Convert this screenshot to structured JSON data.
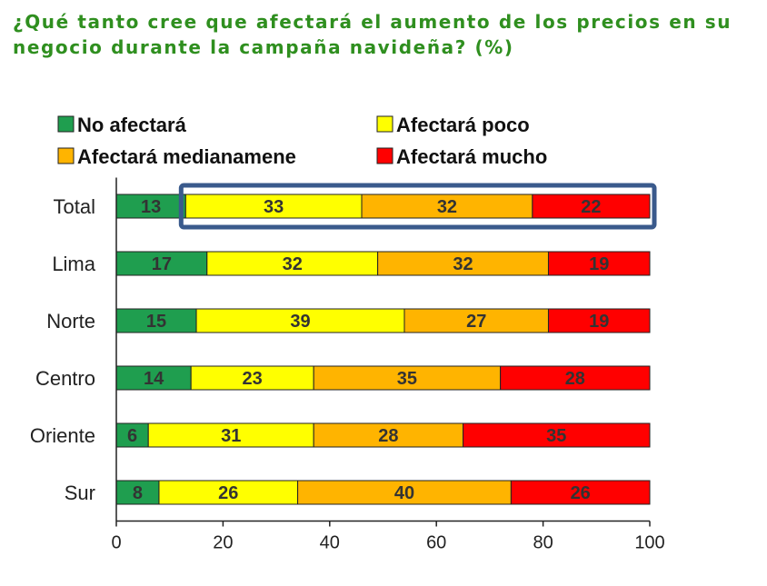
{
  "chart_data": {
    "type": "bar",
    "orientation": "horizontal",
    "stacked": true,
    "title": "¿Qué tanto cree que afectará el aumento de los precios en su negocio durante la campaña navideña? (%)",
    "categories": [
      "Total",
      "Lima",
      "Norte",
      "Centro",
      "Oriente",
      "Sur"
    ],
    "series": [
      {
        "name": "No afectará",
        "color": "#1f9e4f",
        "values": [
          13,
          17,
          15,
          14,
          6,
          8
        ]
      },
      {
        "name": "Afectará poco",
        "color": "#ffff00",
        "values": [
          33,
          32,
          39,
          23,
          31,
          26
        ]
      },
      {
        "name": "Afectará medianamene",
        "color": "#ffb400",
        "values": [
          32,
          32,
          27,
          35,
          28,
          40
        ]
      },
      {
        "name": "Afectará mucho",
        "color": "#ff0000",
        "values": [
          22,
          19,
          19,
          28,
          35,
          26
        ]
      }
    ],
    "xlim": [
      0,
      100
    ],
    "xticks": [
      "0",
      "20",
      "40",
      "60",
      "80",
      "100"
    ],
    "legend_position": "top",
    "grid": false,
    "highlight": {
      "category": "Total",
      "color": "#3a5a8c"
    }
  }
}
